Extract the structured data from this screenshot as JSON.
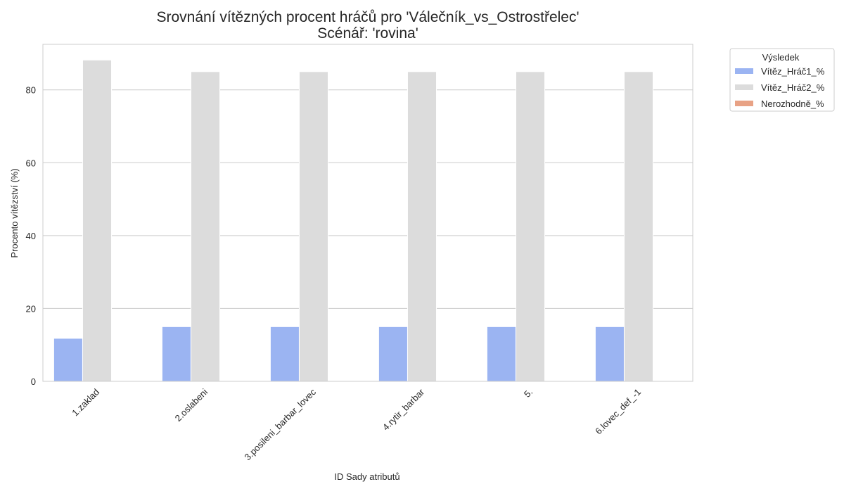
{
  "chart_data": {
    "type": "bar",
    "title": "Srovnání vítězných procent hráčů pro 'Válečník_vs_Ostrostřelec'",
    "subtitle": "Scénář: 'rovina'",
    "xlabel": "ID Sady atributů",
    "ylabel": "Procento vítězství (%)",
    "categories": [
      "1.zaklad",
      "2.oslabeni",
      "3.posileni_barbar_lovec",
      "4.rytir_barbar",
      "5.",
      "6.lovec_def_-1"
    ],
    "series": [
      {
        "name": "Vítěz_Hráč1_%",
        "color": "#9bb4f2",
        "values": [
          11.8,
          15.0,
          15.0,
          15.0,
          15.0,
          15.0
        ]
      },
      {
        "name": "Vítěz_Hráč2_%",
        "color": "#dcdcdc",
        "values": [
          88.2,
          85.0,
          85.0,
          85.0,
          85.0,
          85.0
        ]
      },
      {
        "name": "Nerozhodně_%",
        "color": "#e8a285",
        "values": [
          0,
          0,
          0,
          0,
          0,
          0
        ]
      }
    ],
    "ylim": [
      0,
      92.5
    ],
    "yticks": [
      0,
      20,
      40,
      60,
      80
    ],
    "grid": true,
    "legend": {
      "title": "Výsledek",
      "placement": "outside-top-right"
    }
  }
}
